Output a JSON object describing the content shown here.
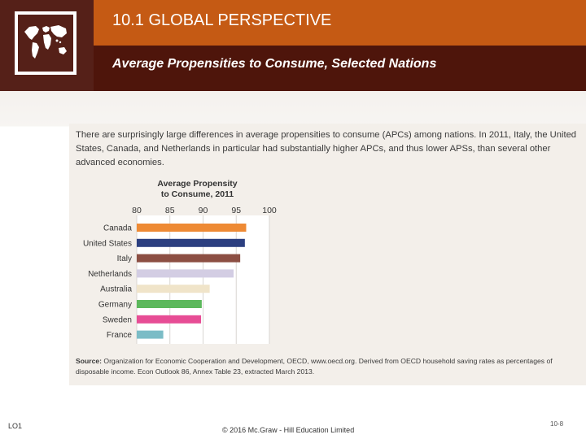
{
  "header": {
    "title": "10.1 GLOBAL PERSPECTIVE",
    "subtitle": "Average Propensities to Consume, Selected Nations"
  },
  "body": {
    "intro": "There are surprisingly large differences in average propensities to consume (APCs) among nations. In 2011, Italy, the United States, Canada, and Netherlands in particular had substantially higher APCs, and thus lower APSs, than several other advanced economies.",
    "source_label": "Source:",
    "source_text": " Organization for Economic Cooperation and Development, OECD, www.oecd.org. Derived from OECD household saving rates as percentages of disposable income. Econ Outlook 86, Annex Table 23, extracted March 2013."
  },
  "footer": {
    "lo": "LO1",
    "copyright": "© 2016 Mc.Graw - Hill Education Limited",
    "page": "10-8"
  },
  "chart_data": {
    "type": "bar",
    "orientation": "horizontal",
    "title": "Average Propensity to Consume, 2011",
    "title_lines": [
      "Average Propensity",
      "to Consume, 2011"
    ],
    "categories": [
      "Canada",
      "United States",
      "Italy",
      "Netherlands",
      "Australia",
      "Germany",
      "Sweden",
      "France"
    ],
    "values": [
      96.5,
      96.3,
      95.6,
      94.6,
      91.0,
      89.8,
      89.7,
      84.0
    ],
    "colors": [
      "#ee8a34",
      "#2c3f80",
      "#8c4f43",
      "#d3cde3",
      "#f0e4c9",
      "#5cb85c",
      "#e74d95",
      "#7bbcc6"
    ],
    "xlim": [
      80,
      100
    ],
    "xticks": [
      80,
      85,
      90,
      95,
      100
    ],
    "xlabel": "",
    "ylabel": "",
    "grid": true
  }
}
